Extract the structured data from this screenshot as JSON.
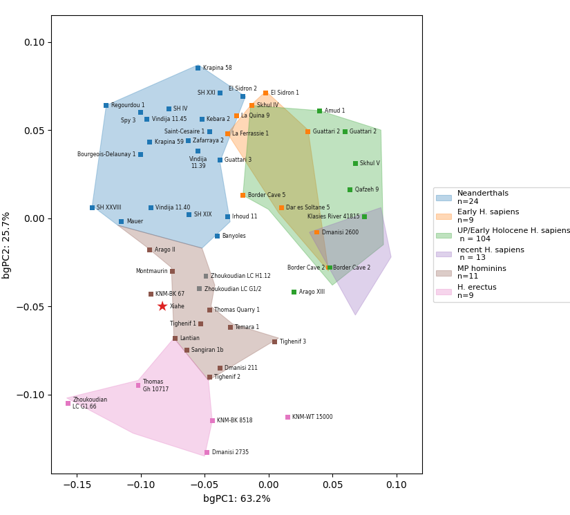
{
  "chart_data": {
    "type": "scatter",
    "xlabel": "bgPC1: 63.2%",
    "ylabel": "bgPC2: 25.7%",
    "xlim": [
      -0.17,
      0.12
    ],
    "ylim": [
      -0.145,
      0.115
    ],
    "xticks": [
      {
        "value": -0.15,
        "label": "−0.15"
      },
      {
        "value": -0.1,
        "label": "−0.10"
      },
      {
        "value": -0.05,
        "label": "−0.05"
      },
      {
        "value": 0.0,
        "label": "0.00"
      },
      {
        "value": 0.05,
        "label": "0.05"
      },
      {
        "value": 0.1,
        "label": "0.10"
      }
    ],
    "yticks": [
      {
        "value": -0.1,
        "label": "−0.10"
      },
      {
        "value": -0.05,
        "label": "−0.05"
      },
      {
        "value": 0.0,
        "label": "0.00"
      },
      {
        "value": 0.05,
        "label": "0.05"
      },
      {
        "value": 0.1,
        "label": "0.10"
      }
    ],
    "grid": false,
    "legend": "right",
    "series": [
      {
        "name": "Neanderthals\nn=24",
        "marker": "square",
        "hull": [
          [
            -0.138,
            0.007
          ],
          [
            -0.127,
            0.064
          ],
          [
            -0.055,
            0.087
          ],
          [
            -0.018,
            0.069
          ],
          [
            -0.038,
            0.032
          ],
          [
            -0.03,
            -0.002
          ],
          [
            -0.052,
            -0.017
          ],
          [
            -0.118,
            -0.004
          ],
          [
            -0.138,
            0.007
          ]
        ],
        "labels": [
          "Krapina 58",
          "SH XXI",
          "El Sidron 2",
          "Regourdou 1",
          "Spy 3",
          "SH IV",
          "Vindija 11.45",
          "Kebara 2",
          "Krapina 59",
          "Zafarraya 2",
          "Saint-Cesaire 1",
          "Bourgeois-Delaunay 1",
          "Vindija\n11.39",
          "Guattari 3",
          "SH XXVIII",
          "Vindija 11.40",
          "SH XIX",
          "Irhoud 11",
          "Banyoles",
          "Mauer"
        ],
        "x": [
          -0.055,
          -0.038,
          -0.02,
          -0.127,
          -0.1,
          -0.078,
          -0.095,
          -0.052,
          -0.093,
          -0.063,
          -0.046,
          -0.1,
          -0.055,
          -0.038,
          -0.138,
          -0.092,
          -0.062,
          -0.032,
          -0.04,
          -0.115
        ],
        "values": [
          0.085,
          0.071,
          0.069,
          0.064,
          0.06,
          0.062,
          0.056,
          0.056,
          0.043,
          0.044,
          0.049,
          0.036,
          0.038,
          0.033,
          0.006,
          0.006,
          0.002,
          0.001,
          -0.01,
          -0.002
        ]
      },
      {
        "name": "Early H. sapiens\nn=9",
        "marker": "square",
        "hull": [
          [
            -0.014,
            0.064
          ],
          [
            -0.002,
            0.072
          ],
          [
            0.031,
            0.05
          ],
          [
            0.047,
            -0.03
          ],
          [
            0.008,
            0.003
          ],
          [
            -0.032,
            0.048
          ],
          [
            -0.014,
            0.064
          ]
        ],
        "labels": [
          "El Sidron 1",
          "Skhul IV",
          "La Quina 9",
          "La Ferrassie 1",
          "Guattari 2",
          "Border Cave 5",
          "Dar es Soltane 5",
          "Dmanisi 2600",
          "Border Cave 2"
        ],
        "x": [
          -0.002,
          -0.013,
          -0.025,
          -0.032,
          0.031,
          -0.02,
          0.01,
          0.038,
          0.047
        ],
        "values": [
          0.071,
          0.064,
          0.058,
          0.048,
          0.049,
          0.013,
          0.006,
          -0.008,
          -0.028
        ]
      },
      {
        "name": "UP/Early Holocene H. sapiens\n n = 104",
        "marker": "square",
        "hull": [
          [
            -0.014,
            0.064
          ],
          [
            0.04,
            0.061
          ],
          [
            0.088,
            0.05
          ],
          [
            0.09,
            -0.015
          ],
          [
            0.05,
            -0.038
          ],
          [
            0.0,
            0.005
          ],
          [
            -0.02,
            0.013
          ],
          [
            -0.014,
            0.064
          ]
        ],
        "labels": [
          "Amud 1",
          "Guattari 2",
          "Skhul V",
          "Qafzeh 9",
          "Klasies River 41815",
          "Arago XIII",
          "Border Cave 2"
        ],
        "x": [
          0.04,
          0.06,
          0.068,
          0.064,
          0.075,
          0.02,
          0.048
        ],
        "values": [
          0.061,
          0.049,
          0.031,
          0.016,
          0.001,
          -0.042,
          -0.028
        ]
      },
      {
        "name": "recent H. sapiens\n n = 13",
        "marker": "square",
        "hull": [
          [
            0.032,
            -0.008
          ],
          [
            0.088,
            0.006
          ],
          [
            0.096,
            -0.022
          ],
          [
            0.068,
            -0.055
          ],
          [
            0.032,
            -0.008
          ]
        ],
        "labels": [],
        "x": [],
        "values": []
      },
      {
        "name": "MP hominins\nn=11",
        "marker": "square",
        "hull": [
          [
            -0.118,
            -0.004
          ],
          [
            -0.096,
            -0.016
          ],
          [
            -0.076,
            -0.028
          ],
          [
            -0.074,
            -0.068
          ],
          [
            -0.047,
            -0.092
          ],
          [
            0.008,
            -0.068
          ],
          [
            -0.028,
            -0.06
          ],
          [
            -0.045,
            -0.05
          ],
          [
            -0.042,
            -0.038
          ],
          [
            -0.052,
            -0.017
          ],
          [
            -0.118,
            -0.004
          ]
        ],
        "labels": [
          "Arago II",
          "Montmaurin",
          "KNM-BK 67",
          "Thomas Quarry 1",
          "Tighenif 1",
          "Temara 1",
          "Lantian",
          "Sangiran 1b",
          "Tighenif 3",
          "Dmanisi 211",
          "Tighenif 2"
        ],
        "x": [
          -0.093,
          -0.075,
          -0.092,
          -0.046,
          -0.053,
          -0.03,
          -0.073,
          -0.064,
          0.005,
          -0.038,
          -0.046
        ],
        "values": [
          -0.018,
          -0.03,
          -0.043,
          -0.052,
          -0.06,
          -0.062,
          -0.068,
          -0.075,
          -0.07,
          -0.085,
          -0.09
        ]
      },
      {
        "name": "H. erectus\nn=9",
        "marker": "square",
        "hull": [
          [
            -0.158,
            -0.102
          ],
          [
            -0.102,
            -0.092
          ],
          [
            -0.074,
            -0.068
          ],
          [
            -0.047,
            -0.092
          ],
          [
            -0.044,
            -0.115
          ],
          [
            -0.05,
            -0.135
          ],
          [
            -0.106,
            -0.122
          ],
          [
            -0.158,
            -0.102
          ]
        ],
        "labels": [
          "Zhoukoudian\nLC G1.66",
          "Thomas\nGh 10717",
          "KNM-BK 8518",
          "Dmanisi 2735",
          "KNM-WT 15000"
        ],
        "x": [
          -0.157,
          -0.102,
          -0.044,
          -0.048,
          0.015
        ],
        "values": [
          -0.105,
          -0.095,
          -0.115,
          -0.133,
          -0.113
        ]
      },
      {
        "marker": "square",
        "labels": [
          "Zhoukoudian LC H1.12",
          "Zhoukoudian LC G1/2"
        ],
        "x": [
          -0.049,
          -0.054
        ],
        "values": [
          -0.033,
          -0.04
        ]
      },
      {
        "marker": "star",
        "color": "#dd2222",
        "labels": [
          "Xiahe"
        ],
        "x": [
          -0.083
        ],
        "values": [
          -0.05
        ]
      }
    ]
  }
}
